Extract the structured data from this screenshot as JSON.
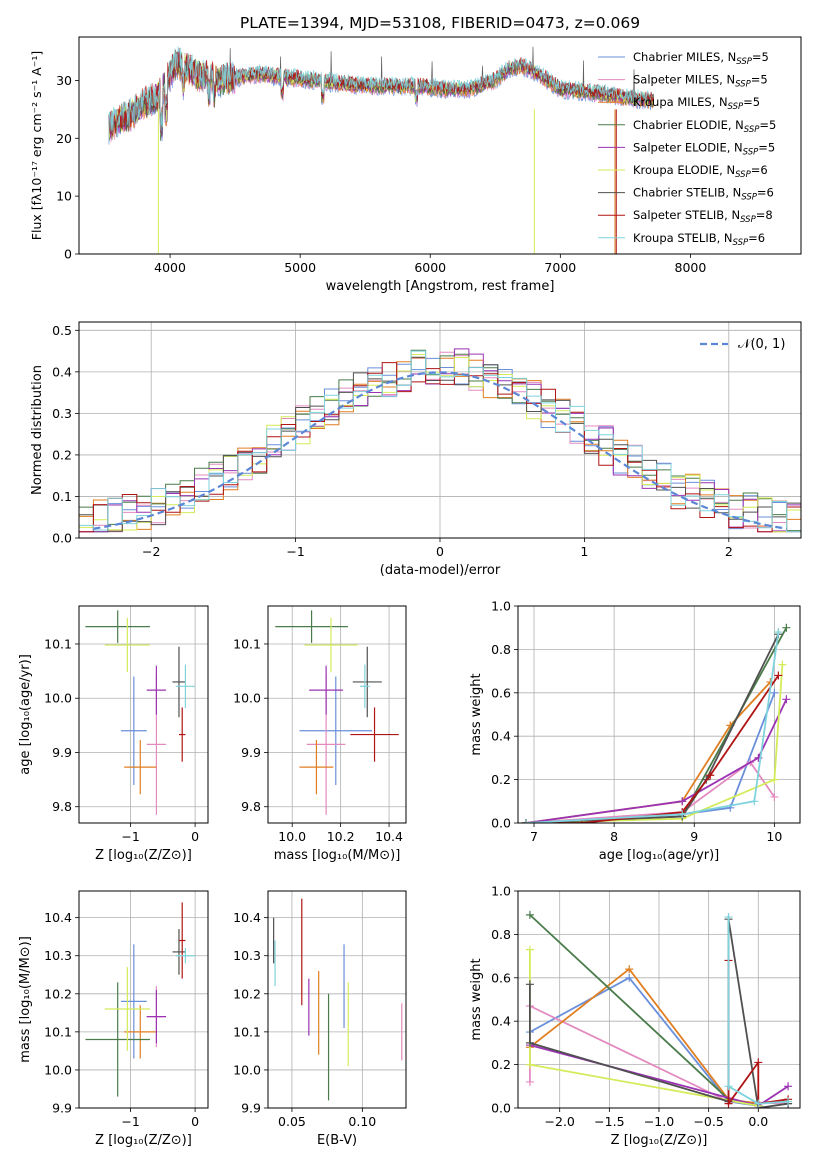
{
  "title": "PLATE=1394, MJD=53108, FIBERID=0473, z=0.069",
  "colors": {
    "Chabrier MILES": "#6a8fdb",
    "Salpeter MILES": "#e38ac0",
    "Kroupa MILES": "#e07f22",
    "Chabrier ELODIE": "#4a7c4a",
    "Salpeter ELODIE": "#9b33b3",
    "Kroupa ELODIE": "#d4eb5a",
    "Chabrier STELIB": "#505050",
    "Salpeter STELIB": "#b11414",
    "Kroupa STELIB": "#7fd3dc"
  },
  "chart_data": [
    {
      "id": "spectrum",
      "type": "line",
      "title": "PLATE=1394, MJD=53108, FIBERID=0473, z=0.069",
      "xlabel": "wavelength [Angstrom, rest frame]",
      "ylabel": "Flux [fλ10⁻¹⁷ erg cm⁻² s⁻¹ A⁻¹]",
      "xlim": [
        3300,
        8850
      ],
      "ylim": [
        0,
        37.5
      ],
      "xticks": [
        "4000",
        "5000",
        "6000",
        "7000",
        "8000"
      ],
      "yticks": [
        "0",
        "10",
        "20",
        "30"
      ],
      "legend_position": "upper right",
      "grid": false,
      "legend": [
        {
          "label": "Chabrier MILES, N",
          "sub": "SSP",
          "tail": "=5"
        },
        {
          "label": "Salpeter MILES, N",
          "sub": "SSP",
          "tail": "=5"
        },
        {
          "label": "Kroupa MILES, N",
          "sub": "SSP",
          "tail": "=5"
        },
        {
          "label": "Chabrier ELODIE, N",
          "sub": "SSP",
          "tail": "=5"
        },
        {
          "label": "Salpeter ELODIE, N",
          "sub": "SSP",
          "tail": "=5"
        },
        {
          "label": "Kroupa ELODIE, N",
          "sub": "SSP",
          "tail": "=6"
        },
        {
          "label": "Chabrier STELIB, N",
          "sub": "SSP",
          "tail": "=6"
        },
        {
          "label": "Salpeter STELIB, N",
          "sub": "SSP",
          "tail": "=8"
        },
        {
          "label": "Kroupa STELIB, N",
          "sub": "SSP",
          "tail": "=6"
        }
      ],
      "continuum": {
        "x": [
          3530,
          3600,
          3700,
          3800,
          3900,
          3950,
          4000,
          4050,
          4100,
          4200,
          4300,
          4400,
          4500,
          4700,
          4900,
          5100,
          5300,
          5500,
          5700,
          5900,
          6100,
          6300,
          6500,
          6600,
          6700,
          6800,
          7000,
          7200,
          7400,
          7500,
          7700
        ],
        "y": [
          22,
          23,
          24,
          26,
          27,
          29,
          31,
          33,
          32.5,
          31,
          30.5,
          30,
          30.5,
          31,
          30.5,
          30,
          29.5,
          29,
          29,
          29,
          28.5,
          28.5,
          30,
          32,
          32.5,
          31.5,
          28.5,
          28,
          27.5,
          27,
          26.5
        ]
      }
    },
    {
      "id": "residuals",
      "type": "histogram",
      "xlabel": "(data-model)/error",
      "ylabel": "Normed distribution",
      "xlim": [
        -2.5,
        2.5
      ],
      "ylim": [
        0,
        0.52
      ],
      "xticks": [
        "−2",
        "−1",
        "0",
        "1",
        "2"
      ],
      "yticks": [
        "0.0",
        "0.1",
        "0.2",
        "0.3",
        "0.4",
        "0.5"
      ],
      "grid": true,
      "reference_label": "𝒩(0, 1)",
      "reference": {
        "mean": 0,
        "sigma": 1
      }
    },
    {
      "id": "age-vs-Z",
      "type": "errorbar",
      "xlabel": "Z [log₁₀(Z/Z⊙)]",
      "ylabel": "age  [log₁₀(age/yr)]",
      "xlim": [
        -1.8,
        0.2
      ],
      "ylim": [
        9.77,
        10.17
      ],
      "xticks": [
        "−1",
        "0"
      ],
      "yticks": [
        "9.8",
        "9.9",
        "10.0",
        "10.1"
      ],
      "points": [
        {
          "model": "Chabrier MILES",
          "x": -0.95,
          "xerr": 0.2,
          "y": 9.94,
          "yerr": 0.1
        },
        {
          "model": "Salpeter MILES",
          "x": -0.6,
          "xerr": 0.15,
          "y": 9.915,
          "yerr": 0.13
        },
        {
          "model": "Kroupa MILES",
          "x": -0.85,
          "xerr": 0.25,
          "y": 9.873,
          "yerr": 0.05
        },
        {
          "model": "Chabrier ELODIE",
          "x": -1.2,
          "xerr": 0.5,
          "y": 10.132,
          "yerr": 0.03
        },
        {
          "model": "Salpeter ELODIE",
          "x": -0.6,
          "xerr": 0.15,
          "y": 10.015,
          "yerr": 0.045
        },
        {
          "model": "Kroupa ELODIE",
          "x": -1.05,
          "xerr": 0.35,
          "y": 10.098,
          "yerr": 0.05
        },
        {
          "model": "Chabrier STELIB",
          "x": -0.25,
          "xerr": 0.1,
          "y": 10.03,
          "yerr": 0.065
        },
        {
          "model": "Salpeter STELIB",
          "x": -0.2,
          "xerr": 0.05,
          "y": 9.933,
          "yerr": 0.05
        },
        {
          "model": "Kroupa STELIB",
          "x": -0.15,
          "xerr": 0.15,
          "y": 10.022,
          "yerr": 0.04
        }
      ]
    },
    {
      "id": "age-vs-mass",
      "type": "errorbar",
      "xlabel": "mass [log₁₀(M/M⊙)]",
      "ylabel": "",
      "xlim": [
        9.9,
        10.47
      ],
      "ylim": [
        9.77,
        10.17
      ],
      "xticks": [
        "10.0",
        "10.2",
        "10.4"
      ],
      "yticks": [
        "9.8",
        "9.9",
        "10.0",
        "10.1"
      ],
      "points": [
        {
          "model": "Chabrier MILES",
          "x": 10.18,
          "xerr": 0.15,
          "y": 9.94,
          "yerr": 0.1
        },
        {
          "model": "Salpeter MILES",
          "x": 10.14,
          "xerr": 0.08,
          "y": 9.915,
          "yerr": 0.13
        },
        {
          "model": "Kroupa MILES",
          "x": 10.1,
          "xerr": 0.07,
          "y": 9.873,
          "yerr": 0.05
        },
        {
          "model": "Chabrier ELODIE",
          "x": 10.08,
          "xerr": 0.15,
          "y": 10.132,
          "yerr": 0.03
        },
        {
          "model": "Salpeter ELODIE",
          "x": 10.14,
          "xerr": 0.07,
          "y": 10.015,
          "yerr": 0.045
        },
        {
          "model": "Kroupa ELODIE",
          "x": 10.16,
          "xerr": 0.11,
          "y": 10.098,
          "yerr": 0.05
        },
        {
          "model": "Chabrier STELIB",
          "x": 10.31,
          "xerr": 0.06,
          "y": 10.03,
          "yerr": 0.065
        },
        {
          "model": "Salpeter STELIB",
          "x": 10.34,
          "xerr": 0.1,
          "y": 9.933,
          "yerr": 0.05
        },
        {
          "model": "Kroupa STELIB",
          "x": 10.3,
          "xerr": 0.02,
          "y": 10.022,
          "yerr": 0.04
        }
      ]
    },
    {
      "id": "weight-vs-age",
      "type": "line",
      "xlabel": "age  [log₁₀(age/yr)]",
      "ylabel": "mass weight",
      "xlim": [
        6.8,
        10.32
      ],
      "ylim": [
        0,
        1
      ],
      "xticks": [
        "7",
        "8",
        "9",
        "10"
      ],
      "yticks": [
        "0.0",
        "0.2",
        "0.4",
        "0.6",
        "0.8",
        "1.0"
      ],
      "grid": true,
      "series": [
        {
          "model": "Chabrier MILES",
          "x": [
            6.9,
            8.85,
            9.45,
            10.0
          ],
          "y": [
            0.0,
            0.04,
            0.07,
            0.6
          ]
        },
        {
          "model": "Salpeter MILES",
          "x": [
            6.9,
            8.85,
            9.7,
            10.0
          ],
          "y": [
            0.0,
            0.05,
            0.28,
            0.12
          ]
        },
        {
          "model": "Kroupa MILES",
          "x": [
            6.9,
            8.85,
            9.45,
            9.95
          ],
          "y": [
            0.0,
            0.1,
            0.45,
            0.65
          ]
        },
        {
          "model": "Chabrier ELODIE",
          "x": [
            6.9,
            8.85,
            10.15
          ],
          "y": [
            0.0,
            0.03,
            0.9
          ]
        },
        {
          "model": "Salpeter ELODIE",
          "x": [
            6.9,
            8.85,
            9.8,
            10.15
          ],
          "y": [
            0.0,
            0.1,
            0.3,
            0.57
          ]
        },
        {
          "model": "Kroupa ELODIE",
          "x": [
            6.9,
            8.85,
            10.0,
            10.1
          ],
          "y": [
            0.0,
            0.02,
            0.2,
            0.73
          ]
        },
        {
          "model": "Chabrier STELIB",
          "x": [
            6.9,
            8.85,
            9.15,
            10.05
          ],
          "y": [
            0.0,
            0.03,
            0.2,
            0.87
          ]
        },
        {
          "model": "Salpeter STELIB",
          "x": [
            6.9,
            7.6,
            8.85,
            9.2,
            10.05
          ],
          "y": [
            0.0,
            0.0,
            0.05,
            0.22,
            0.68
          ]
        },
        {
          "model": "Kroupa STELIB",
          "x": [
            6.9,
            8.85,
            9.75,
            10.05
          ],
          "y": [
            0.0,
            0.04,
            0.1,
            0.88
          ]
        }
      ]
    },
    {
      "id": "mass-vs-Z",
      "type": "errorbar",
      "xlabel": "Z [log₁₀(Z/Z⊙)]",
      "ylabel": "mass [log₁₀(M/M⊙)]",
      "xlim": [
        -1.8,
        0.2
      ],
      "ylim": [
        9.9,
        10.47
      ],
      "xticks": [
        "−1",
        "0"
      ],
      "yticks": [
        "9.9",
        "10.0",
        "10.1",
        "10.2",
        "10.3",
        "10.4"
      ],
      "points": [
        {
          "model": "Chabrier MILES",
          "x": -0.95,
          "xerr": 0.2,
          "y": 10.18,
          "yerr": 0.15
        },
        {
          "model": "Salpeter MILES",
          "x": -0.6,
          "xerr": 0.15,
          "y": 10.14,
          "yerr": 0.08
        },
        {
          "model": "Kroupa MILES",
          "x": -0.85,
          "xerr": 0.25,
          "y": 10.1,
          "yerr": 0.07
        },
        {
          "model": "Chabrier ELODIE",
          "x": -1.2,
          "xerr": 0.5,
          "y": 10.08,
          "yerr": 0.15
        },
        {
          "model": "Salpeter ELODIE",
          "x": -0.6,
          "xerr": 0.15,
          "y": 10.14,
          "yerr": 0.07
        },
        {
          "model": "Kroupa ELODIE",
          "x": -1.05,
          "xerr": 0.35,
          "y": 10.16,
          "yerr": 0.11
        },
        {
          "model": "Chabrier STELIB",
          "x": -0.25,
          "xerr": 0.1,
          "y": 10.31,
          "yerr": 0.06
        },
        {
          "model": "Salpeter STELIB",
          "x": -0.2,
          "xerr": 0.05,
          "y": 10.34,
          "yerr": 0.1
        },
        {
          "model": "Kroupa STELIB",
          "x": -0.15,
          "xerr": 0.15,
          "y": 10.3,
          "yerr": 0.02
        }
      ]
    },
    {
      "id": "mass-vs-ebv",
      "type": "errorbar",
      "xlabel": "E(B-V)",
      "ylabel": "",
      "xlim": [
        0.033,
        0.131
      ],
      "ylim": [
        9.9,
        10.47
      ],
      "xticks": [
        "0.05",
        "0.10"
      ],
      "yticks": [
        "9.9",
        "10.0",
        "10.1",
        "10.2",
        "10.3",
        "10.4"
      ],
      "points": [
        {
          "model": "Chabrier MILES",
          "x": 0.087,
          "xerr": 0,
          "y": 10.22,
          "yerr": 0.11
        },
        {
          "model": "Salpeter MILES",
          "x": 0.128,
          "xerr": 0,
          "y": 10.1,
          "yerr": 0.075
        },
        {
          "model": "Kroupa MILES",
          "x": 0.069,
          "xerr": 0,
          "y": 10.15,
          "yerr": 0.11
        },
        {
          "model": "Chabrier ELODIE",
          "x": 0.076,
          "xerr": 0,
          "y": 10.06,
          "yerr": 0.14
        },
        {
          "model": "Salpeter ELODIE",
          "x": 0.062,
          "xerr": 0,
          "y": 10.165,
          "yerr": 0.075
        },
        {
          "model": "Kroupa ELODIE",
          "x": 0.09,
          "xerr": 0,
          "y": 10.12,
          "yerr": 0.11
        },
        {
          "model": "Chabrier STELIB",
          "x": 0.037,
          "xerr": 0,
          "y": 10.34,
          "yerr": 0.06
        },
        {
          "model": "Salpeter STELIB",
          "x": 0.057,
          "xerr": 0,
          "y": 10.31,
          "yerr": 0.14
        },
        {
          "model": "Kroupa STELIB",
          "x": 0.038,
          "xerr": 0,
          "y": 10.28,
          "yerr": 0.06
        }
      ]
    },
    {
      "id": "weight-vs-Z",
      "type": "line",
      "xlabel": "Z [log₁₀(Z/Z⊙)]",
      "ylabel": "mass weight",
      "xlim": [
        -2.42,
        0.42
      ],
      "ylim": [
        0,
        1
      ],
      "xticks": [
        "−2.0",
        "−1.5",
        "−1.0",
        "−0.5",
        "0.0"
      ],
      "yticks": [
        "0.0",
        "0.2",
        "0.4",
        "0.6",
        "0.8",
        "1.0"
      ],
      "grid": true,
      "series": [
        {
          "model": "Chabrier MILES",
          "x": [
            -2.3,
            -1.3,
            -0.3,
            0.0
          ],
          "y": [
            0.35,
            0.6,
            0.03,
            0.01
          ]
        },
        {
          "model": "Salpeter MILES",
          "x": [
            -2.3,
            -2.3,
            -0.3,
            0.3
          ],
          "y": [
            0.12,
            0.47,
            0.03,
            0.02
          ]
        },
        {
          "model": "Kroupa MILES",
          "x": [
            -2.3,
            -1.3,
            -0.3,
            0.0
          ],
          "y": [
            0.28,
            0.64,
            0.04,
            0.02
          ]
        },
        {
          "model": "Chabrier ELODIE",
          "x": [
            -2.3,
            -0.3,
            0.0
          ],
          "y": [
            0.89,
            0.04,
            0.01
          ]
        },
        {
          "model": "Salpeter ELODIE",
          "x": [
            -2.3,
            0.0,
            0.3
          ],
          "y": [
            0.29,
            0.01,
            0.1
          ]
        },
        {
          "model": "Kroupa ELODIE",
          "x": [
            -2.3,
            -2.3,
            0.0
          ],
          "y": [
            0.73,
            0.2,
            0.01
          ]
        },
        {
          "model": "Chabrier STELIB",
          "x": [
            -2.3,
            -2.3,
            -0.3,
            -0.3,
            0.0,
            0.3
          ],
          "y": [
            0.57,
            0.3,
            0.03,
            0.87,
            0.0,
            0.02
          ]
        },
        {
          "model": "Salpeter STELIB",
          "x": [
            -0.3,
            -0.3,
            0.0,
            0.0,
            0.3
          ],
          "y": [
            0.68,
            0.02,
            0.21,
            0.02,
            0.04
          ]
        },
        {
          "model": "Kroupa STELIB",
          "x": [
            -0.3,
            -0.3,
            0.0,
            0.3
          ],
          "y": [
            0.88,
            0.1,
            0.02,
            0.03
          ]
        }
      ]
    }
  ]
}
